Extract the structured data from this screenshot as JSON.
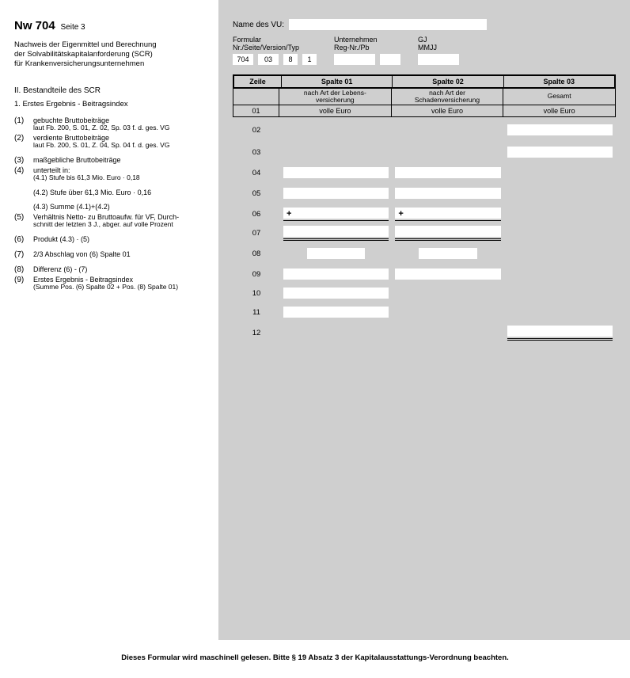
{
  "header": {
    "form_id": "Nw 704",
    "page_label": "Seite 3",
    "subtitle_l1": "Nachweis der Eigenmittel und Berechnung",
    "subtitle_l2": "der Solvabilitätskapitalanforderung (SCR)",
    "subtitle_l3": "für Krankenversicherungsunternehmen"
  },
  "vu": {
    "label": "Name des VU:"
  },
  "meta": {
    "formular_lbl_l1": "Formular",
    "formular_lbl_l2": "Nr./Seite/Version/Typ",
    "formular_nr": "704",
    "formular_seite": "03",
    "formular_version": "8",
    "formular_typ": "1",
    "unternehmen_lbl_l1": "Unternehmen",
    "unternehmen_lbl_l2": "Reg-Nr./Pb",
    "gj_lbl_l1": "GJ",
    "gj_lbl_l2": "MMJJ"
  },
  "grid": {
    "zeile": "Zeile",
    "sp01": "Spalte 01",
    "sp02": "Spalte 02",
    "sp03": "Spalte 03",
    "sub_sp01": "nach Art der Lebens-\nversicherung",
    "sub_sp02": "nach Art der\nSchadenversicherung",
    "sub_sp03": "Gesamt",
    "euro": "volle Euro",
    "row01": "01"
  },
  "section": {
    "h2": "II. Bestandteile des SCR",
    "h3": "1. Erstes Ergebnis - Beitragsindex"
  },
  "items": [
    {
      "idx": "(1)",
      "txt": "gebuchte Bruttobeiträge",
      "sub": "laut Fb. 200, S. 01, Z. 02, Sp. 03 f. d. ges. VG",
      "zeile": "02"
    },
    {
      "idx": "(2)",
      "txt": "verdiente Bruttobeiträge",
      "sub": "laut Fb. 200, S. 01, Z. 04, Sp. 04 f. d. ges. VG",
      "zeile": "03"
    },
    {
      "idx": "(3)",
      "txt": "maßgebliche Bruttobeiträge",
      "zeile": "04",
      "gap": true
    },
    {
      "idx": "(4)",
      "txt": "unterteilt in:",
      "sub": "(4.1) Stufe bis 61,3 Mio. Euro · 0,18",
      "zeile": "05"
    },
    {
      "idx": "",
      "txt": "(4.2) Stufe über 61,3 Mio. Euro · 0,16",
      "zeile": "06",
      "gap": true,
      "plus": true,
      "underline": true
    },
    {
      "idx": "",
      "txt": "(4.3) Summe (4.1)+(4.2)",
      "zeile": "07",
      "gap": true,
      "dbl": true
    },
    {
      "idx": "(5)",
      "txt": "Verhältnis Netto- zu Bruttoaufw. für VF, Durch-",
      "sub": "schnitt der letzten 3 J., abger. auf volle Prozent",
      "zeile": "08",
      "narrow": true
    },
    {
      "idx": "(6)",
      "txt": "Produkt (4.3) · (5)",
      "zeile": "09",
      "gap": true
    },
    {
      "idx": "(7)",
      "txt": "2/3 Abschlag von (6) Spalte 01",
      "zeile": "10",
      "gap": true,
      "only1": true
    },
    {
      "idx": "(8)",
      "txt": "Differenz (6) - (7)",
      "zeile": "11",
      "gap": true,
      "only1": true
    },
    {
      "idx": "(9)",
      "txt": "Erstes Ergebnis - Beitragsindex",
      "sub": "(Summe Pos. (6) Spalte 02 + Pos. (8) Spalte 01)",
      "zeile": "12",
      "only3": true,
      "dbl3": true
    }
  ],
  "footer": "Dieses Formular wird maschinell gelesen. Bitte § 19 Absatz 3 der Kapitalausstattungs-Verordnung beachten."
}
